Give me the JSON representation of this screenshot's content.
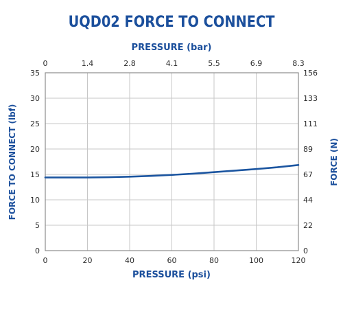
{
  "colors": {
    "brand_blue": "#1b4f9c",
    "line_blue": "#1b55a0",
    "grid": "#c7c7c7",
    "axis": "#8c8c8c",
    "tick_text": "#2b2b2b"
  },
  "chart_data": {
    "type": "line",
    "title": "UQD02 FORCE TO CONNECT",
    "xlabel": "PRESSURE (psi)",
    "xlabel_top": "PRESSURE (bar)",
    "ylabel": "FORCE TO CONNECT (lbf)",
    "ylabel_right": "FORCE (N)",
    "xlim": [
      0,
      120
    ],
    "ylim": [
      0,
      35
    ],
    "grid": true,
    "x_ticks": [
      "0",
      "20",
      "40",
      "60",
      "80",
      "100",
      "120"
    ],
    "x_ticks_top": [
      "0",
      "1.4",
      "2.8",
      "4.1",
      "5.5",
      "6.9",
      "8.3"
    ],
    "y_ticks": [
      "0",
      "5",
      "10",
      "15",
      "20",
      "25",
      "30",
      "35"
    ],
    "y_ticks_right": [
      "0",
      "22",
      "44",
      "67",
      "89",
      "111",
      "133",
      "156"
    ],
    "series": [
      {
        "x": [
          0,
          10,
          20,
          30,
          40,
          50,
          60,
          70,
          80,
          90,
          100,
          110,
          120
        ],
        "values": [
          14.4,
          14.4,
          14.4,
          14.45,
          14.55,
          14.7,
          14.9,
          15.15,
          15.45,
          15.75,
          16.05,
          16.4,
          16.85
        ]
      }
    ]
  }
}
